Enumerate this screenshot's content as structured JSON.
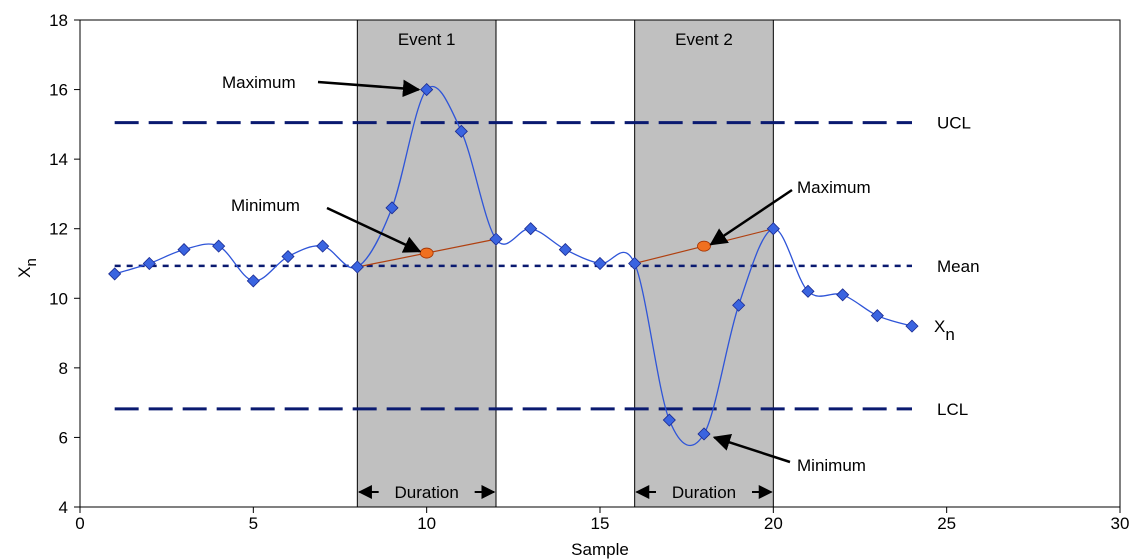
{
  "chart_data": {
    "type": "line",
    "xlabel": "Sample",
    "ylabel": "X",
    "ylabel_sub": "n",
    "xlim": [
      0,
      30
    ],
    "ylim": [
      4,
      18
    ],
    "x_ticks": [
      0,
      5,
      10,
      15,
      20,
      25,
      30
    ],
    "y_ticks": [
      4,
      6,
      8,
      10,
      12,
      14,
      16,
      18
    ],
    "grid": false,
    "series": [
      {
        "name": "X",
        "name_sub": "n",
        "color": "#2f55d8",
        "x": [
          1,
          2,
          3,
          4,
          5,
          6,
          7,
          8,
          9,
          10,
          11,
          12,
          13,
          14,
          15,
          16,
          17,
          18,
          19,
          20,
          21,
          22,
          23,
          24
        ],
        "y": [
          10.7,
          11.0,
          11.4,
          11.5,
          10.5,
          11.2,
          11.5,
          10.9,
          12.6,
          16.0,
          14.8,
          11.7,
          12.0,
          11.4,
          11.0,
          11.0,
          6.5,
          6.1,
          9.8,
          12.0,
          10.2,
          10.1,
          9.5,
          9.2
        ]
      }
    ],
    "reference_lines": [
      {
        "label": "UCL",
        "y": 15.05,
        "x_start": 1,
        "x_end": 24,
        "style": "long-dash",
        "color": "#0a1a70"
      },
      {
        "label": "Mean",
        "y": 10.93,
        "x_start": 1,
        "x_end": 24,
        "style": "short-dash",
        "color": "#0a1a70"
      },
      {
        "label": "LCL",
        "y": 6.82,
        "x_start": 1,
        "x_end": 24,
        "style": "long-dash",
        "color": "#0a1a70"
      }
    ],
    "events": [
      {
        "label": "Event  1",
        "x_start": 8,
        "x_end": 12,
        "duration_label": "Duration",
        "trend_line": {
          "x": [
            8,
            12
          ],
          "y": [
            10.9,
            11.7
          ]
        },
        "midpoint": {
          "x": 10,
          "y": 11.3
        }
      },
      {
        "label": "Event  2",
        "x_start": 16,
        "x_end": 20,
        "duration_label": "Duration",
        "trend_line": {
          "x": [
            16,
            20
          ],
          "y": [
            11.0,
            12.0
          ]
        },
        "midpoint": {
          "x": 18,
          "y": 11.5
        }
      }
    ],
    "annotations": [
      {
        "text": "Maximum",
        "target": [
          10,
          16.0
        ]
      },
      {
        "text": "Minimum",
        "target": [
          9.8,
          11.35
        ]
      },
      {
        "text": "Maximum",
        "target": [
          18.2,
          11.55
        ]
      },
      {
        "text": "Minimum",
        "target": [
          18.3,
          6.0
        ]
      }
    ],
    "colors": {
      "event_fill": "#c0c0c0",
      "marker_fill": "#3a64e0",
      "midpoint_fill": "#f07020",
      "trend_line": "#b04010"
    }
  }
}
